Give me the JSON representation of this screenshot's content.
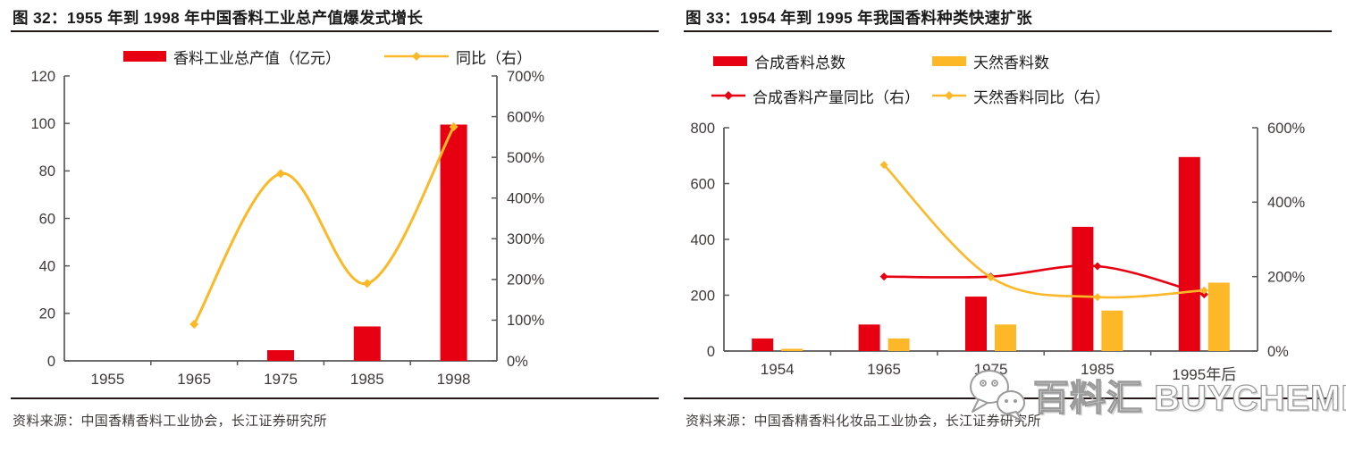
{
  "watermark": {
    "text": "百料汇 BUYCHEMI",
    "icon": "wechat-icon"
  },
  "colors": {
    "red": "#e60012",
    "yellow": "#fcb827",
    "axis_line": "#595757",
    "axis_text": "#3f3a39",
    "rule": "#231815"
  },
  "chart_data": [
    {
      "type": "bar+line",
      "title": "图 32：1955 年到 1998 年中国香料工业总产值爆发式增长",
      "categories": [
        "1955",
        "1965",
        "1975",
        "1985",
        "1998"
      ],
      "series": [
        {
          "name": "香料工业总产值（亿元）",
          "type": "bar",
          "axis": "left",
          "color": "#e60012",
          "values": [
            0,
            0,
            4.5,
            14.5,
            99.5
          ]
        },
        {
          "name": "同比（右）",
          "type": "line",
          "axis": "right",
          "color": "#fcb827",
          "unit": "%",
          "values": [
            null,
            90,
            460,
            190,
            575
          ]
        }
      ],
      "left_axis": {
        "min": 0,
        "max": 120,
        "step": 20,
        "suffix": "",
        "ticks": [
          0,
          20,
          40,
          60,
          80,
          100,
          120
        ]
      },
      "right_axis": {
        "min": 0,
        "max": 700,
        "step": 100,
        "suffix": "%",
        "ticks": [
          0,
          100,
          200,
          300,
          400,
          500,
          600,
          700
        ]
      },
      "legend_position": "top",
      "grid": false,
      "source": "资料来源：中国香精香料工业协会，长江证券研究所"
    },
    {
      "type": "bar+line",
      "title": "图 33：1954 年到 1995 年我国香料种类快速扩张",
      "categories": [
        "1954",
        "1965",
        "1975",
        "1985",
        "1995年后"
      ],
      "series": [
        {
          "name": "合成香料总数",
          "type": "bar",
          "axis": "left",
          "color": "#e60012",
          "values": [
            45,
            95,
            195,
            445,
            695
          ]
        },
        {
          "name": "天然香料数",
          "type": "bar",
          "axis": "left",
          "color": "#fcb827",
          "values": [
            8,
            45,
            95,
            145,
            245
          ]
        },
        {
          "name": "合成香料产量同比（右）",
          "type": "line",
          "axis": "right",
          "color": "#e60012",
          "unit": "%",
          "values": [
            null,
            200,
            200,
            228,
            152
          ]
        },
        {
          "name": "天然香料同比（右）",
          "type": "line",
          "axis": "right",
          "color": "#fcb827",
          "unit": "%",
          "values": [
            null,
            500,
            198,
            145,
            163
          ]
        }
      ],
      "left_axis": {
        "min": 0,
        "max": 800,
        "step": 200,
        "suffix": "",
        "ticks": [
          0,
          200,
          400,
          600,
          800
        ]
      },
      "right_axis": {
        "min": 0,
        "max": 600,
        "step": 200,
        "suffix": "%",
        "ticks": [
          0,
          200,
          400,
          600
        ]
      },
      "legend_position": "top",
      "grid": false,
      "source": "资料来源：中国香精香料化妆品工业协会，长江证券研究所"
    }
  ]
}
